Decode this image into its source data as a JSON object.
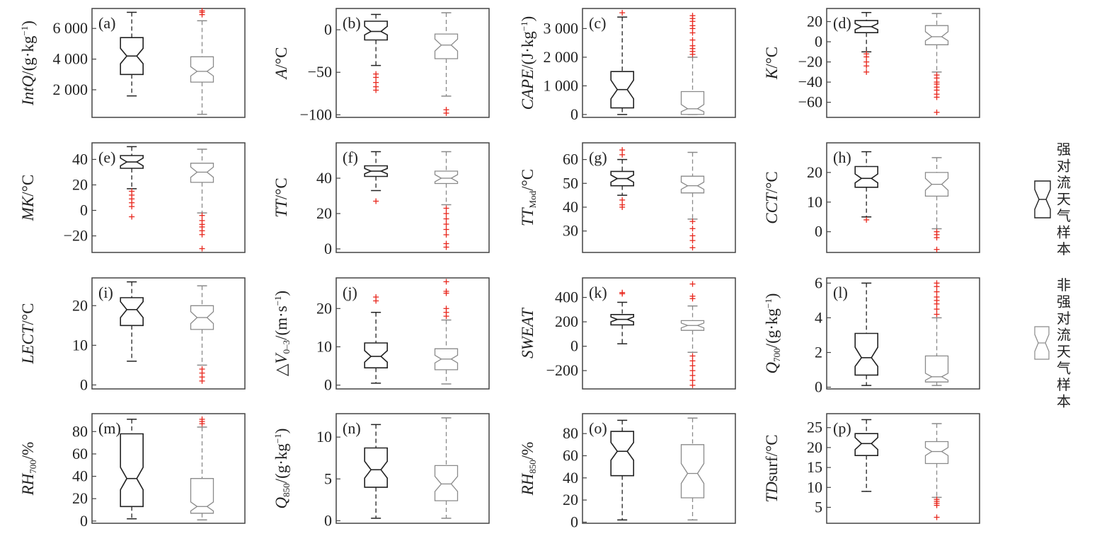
{
  "figure": {
    "legend": [
      {
        "label": "强对流天气样本",
        "color": "#222222"
      },
      {
        "label": "非强对流天气样本",
        "color": "#8a8a8a"
      }
    ],
    "outlier_color": "#e8281e"
  },
  "chart_data": [
    {
      "type": "box",
      "panel": "(a)",
      "ylabel": "IntQ/(g·kg⁻¹)",
      "ylim": [
        200,
        7300
      ],
      "yticks": [
        {
          "v": 2000,
          "t": "2 000"
        },
        {
          "v": 4000,
          "t": "4 000"
        },
        {
          "v": 6000,
          "t": "6 000"
        }
      ],
      "series": [
        {
          "q1": 3000,
          "med": 4200,
          "q3": 5400,
          "notch": [
            3700,
            4700
          ],
          "lo": 1600,
          "hi": 7050,
          "out": []
        },
        {
          "q1": 2500,
          "med": 3200,
          "q3": 4150,
          "notch": [
            2900,
            3500
          ],
          "lo": 400,
          "hi": 6500,
          "out": [
            6900,
            7050,
            7150
          ]
        }
      ]
    },
    {
      "type": "box",
      "panel": "(b)",
      "ylabel": "A/°C",
      "ylim": [
        -103,
        25
      ],
      "yticks": [
        {
          "v": 0,
          "t": "0"
        },
        {
          "v": -50,
          "t": "−50"
        },
        {
          "v": -100,
          "t": "−100"
        }
      ],
      "series": [
        {
          "q1": -12,
          "med": -2,
          "q3": 10,
          "notch": [
            -6,
            4
          ],
          "lo": -42,
          "hi": 18,
          "out": [
            -52,
            -56,
            -62,
            -67,
            -71
          ]
        },
        {
          "q1": -34,
          "med": -18,
          "q3": -5,
          "notch": [
            -25,
            -11
          ],
          "lo": -78,
          "hi": 20,
          "out": [
            -94,
            -98
          ]
        }
      ]
    },
    {
      "type": "box",
      "panel": "(c)",
      "ylabel": "CAPE/(J·kg⁻¹)",
      "ylim": [
        -100,
        3700
      ],
      "yticks": [
        {
          "v": 0,
          "t": "0"
        },
        {
          "v": 1000,
          "t": "1 000"
        },
        {
          "v": 2000,
          "t": "2 000"
        },
        {
          "v": 3000,
          "t": "3 000"
        }
      ],
      "series": [
        {
          "q1": 230,
          "med": 870,
          "q3": 1500,
          "notch": [
            550,
            1200
          ],
          "lo": 0,
          "hi": 3400,
          "out": [
            3550
          ]
        },
        {
          "q1": 0,
          "med": 200,
          "q3": 800,
          "notch": [
            100,
            350
          ],
          "lo": 0,
          "hi": 2000,
          "out": [
            2100,
            2200,
            2300,
            2400,
            2600,
            2850,
            3000,
            3100,
            3250,
            3350,
            3450
          ]
        }
      ]
    },
    {
      "type": "box",
      "panel": "(d)",
      "ylabel": "K/°C",
      "ylim": [
        -75,
        33
      ],
      "yticks": [
        {
          "v": 20,
          "t": "20"
        },
        {
          "v": 0,
          "t": "0"
        },
        {
          "v": -20,
          "t": "−20"
        },
        {
          "v": -40,
          "t": "−40"
        },
        {
          "v": -60,
          "t": "−60"
        }
      ],
      "series": [
        {
          "q1": 9,
          "med": 15,
          "q3": 21,
          "notch": [
            12,
            18
          ],
          "lo": -10,
          "hi": 29,
          "out": [
            -12,
            -15,
            -20,
            -24,
            -30
          ]
        },
        {
          "q1": -3,
          "med": 5,
          "q3": 16,
          "notch": [
            1,
            10
          ],
          "lo": -30,
          "hi": 28,
          "out": [
            -33,
            -36,
            -40,
            -42,
            -45,
            -48,
            -52,
            -55,
            -70
          ]
        }
      ]
    },
    {
      "type": "box",
      "panel": "(e)",
      "ylabel": "MK/°C",
      "ylim": [
        -33,
        53
      ],
      "yticks": [
        {
          "v": 40,
          "t": "40"
        },
        {
          "v": 20,
          "t": "20"
        },
        {
          "v": 0,
          "t": "0"
        },
        {
          "v": -20,
          "t": "−20"
        }
      ],
      "series": [
        {
          "q1": 33,
          "med": 38,
          "q3": 43,
          "notch": [
            35,
            41
          ],
          "lo": 17,
          "hi": 50,
          "out": [
            15,
            12,
            9,
            6,
            3,
            -5
          ]
        },
        {
          "q1": 22,
          "med": 30,
          "q3": 37,
          "notch": [
            26,
            34
          ],
          "lo": -2,
          "hi": 48,
          "out": [
            -4,
            -8,
            -11,
            -13,
            -16,
            -19,
            -30
          ]
        }
      ]
    },
    {
      "type": "box",
      "panel": "(f)",
      "ylabel": "TT/°C",
      "ylim": [
        -2,
        60
      ],
      "yticks": [
        {
          "v": 40,
          "t": "40"
        },
        {
          "v": 20,
          "t": "20"
        },
        {
          "v": 0,
          "t": "0"
        }
      ],
      "series": [
        {
          "q1": 41,
          "med": 44,
          "q3": 47,
          "notch": [
            42.5,
            45.5
          ],
          "lo": 33,
          "hi": 55,
          "out": [
            27
          ]
        },
        {
          "q1": 37,
          "med": 40,
          "q3": 44,
          "notch": [
            38,
            42
          ],
          "lo": 25,
          "hi": 55,
          "out": [
            23,
            20,
            17,
            14,
            11,
            8,
            3,
            1
          ]
        }
      ]
    },
    {
      "type": "box",
      "panel": "(g)",
      "ylabel": "TT_Mod/°C",
      "ylim": [
        21,
        67
      ],
      "yticks": [
        {
          "v": 60,
          "t": "60"
        },
        {
          "v": 50,
          "t": "50"
        },
        {
          "v": 40,
          "t": "40"
        },
        {
          "v": 30,
          "t": "30"
        }
      ],
      "series": [
        {
          "q1": 49,
          "med": 52,
          "q3": 55,
          "notch": [
            50.5,
            53.5
          ],
          "lo": 45,
          "hi": 60,
          "out": [
            64,
            62,
            43,
            41,
            40
          ]
        },
        {
          "q1": 46,
          "med": 49,
          "q3": 53,
          "notch": [
            47.5,
            50.5
          ],
          "lo": 35,
          "hi": 63,
          "out": [
            34,
            31,
            28,
            26,
            23
          ]
        }
      ]
    },
    {
      "type": "box",
      "panel": "(h)",
      "ylabel": "CCT/°C",
      "ylim": [
        -7,
        30
      ],
      "yticks": [
        {
          "v": 20,
          "t": "20"
        },
        {
          "v": 10,
          "t": "10"
        },
        {
          "v": 0,
          "t": "0"
        }
      ],
      "series": [
        {
          "q1": 15,
          "med": 18,
          "q3": 22,
          "notch": [
            16.5,
            19.5
          ],
          "lo": 5,
          "hi": 27,
          "out": [
            4
          ]
        },
        {
          "q1": 12,
          "med": 16,
          "q3": 20,
          "notch": [
            14,
            18
          ],
          "lo": 1,
          "hi": 25,
          "out": [
            0,
            -1,
            -2,
            -6
          ]
        }
      ]
    },
    {
      "type": "box",
      "panel": "(i)",
      "ylabel": "LECT/°C",
      "ylim": [
        -1,
        27
      ],
      "yticks": [
        {
          "v": 20,
          "t": "20"
        },
        {
          "v": 10,
          "t": "10"
        },
        {
          "v": 0,
          "t": "0"
        }
      ],
      "series": [
        {
          "q1": 15,
          "med": 19,
          "q3": 22,
          "notch": [
            17,
            21
          ],
          "lo": 6,
          "hi": 26,
          "out": []
        },
        {
          "q1": 14,
          "med": 17,
          "q3": 20,
          "notch": [
            15.5,
            18.5
          ],
          "lo": 5,
          "hi": 25,
          "out": [
            4,
            3,
            2,
            1
          ]
        }
      ]
    },
    {
      "type": "box",
      "panel": "(j)",
      "ylabel": "△V0–3/(m·s⁻¹)",
      "ylim": [
        -1,
        28
      ],
      "yticks": [
        {
          "v": 20,
          "t": "20"
        },
        {
          "v": 10,
          "t": "10"
        },
        {
          "v": 0,
          "t": "0"
        }
      ],
      "series": [
        {
          "q1": 4.5,
          "med": 7.5,
          "q3": 11,
          "notch": [
            6,
            9
          ],
          "lo": 0.5,
          "hi": 19,
          "out": [
            22,
            23
          ]
        },
        {
          "q1": 4,
          "med": 6.8,
          "q3": 9.5,
          "notch": [
            5.8,
            7.8
          ],
          "lo": 0.3,
          "hi": 17,
          "out": [
            18,
            19,
            20,
            24,
            24.5,
            27
          ]
        }
      ]
    },
    {
      "type": "box",
      "panel": "(k)",
      "ylabel": "SWEAT",
      "ylim": [
        -350,
        560
      ],
      "yticks": [
        {
          "v": 400,
          "t": "400"
        },
        {
          "v": 200,
          "t": "200"
        },
        {
          "v": 0,
          "t": "0"
        },
        {
          "v": -200,
          "t": "−200"
        }
      ],
      "series": [
        {
          "q1": 175,
          "med": 220,
          "q3": 260,
          "notch": [
            200,
            240
          ],
          "lo": 20,
          "hi": 360,
          "out": [
            430,
            440
          ]
        },
        {
          "q1": 130,
          "med": 170,
          "q3": 210,
          "notch": [
            150,
            190
          ],
          "lo": -50,
          "hi": 330,
          "out": [
            -80,
            -120,
            -160,
            -200,
            -240,
            -280,
            -320,
            390,
            410,
            510
          ]
        }
      ]
    },
    {
      "type": "box",
      "panel": "(l)",
      "ylabel": "Q700/(g·kg⁻¹)",
      "ylim": [
        -0.1,
        6.3
      ],
      "yticks": [
        {
          "v": 6,
          "t": "6"
        },
        {
          "v": 4,
          "t": "4"
        },
        {
          "v": 2,
          "t": "2"
        },
        {
          "v": 0,
          "t": "0"
        }
      ],
      "series": [
        {
          "q1": 0.7,
          "med": 1.7,
          "q3": 3.1,
          "notch": [
            1.2,
            2.3
          ],
          "lo": 0.1,
          "hi": 6,
          "out": []
        },
        {
          "q1": 0.3,
          "med": 0.6,
          "q3": 1.8,
          "notch": [
            0.4,
            0.8
          ],
          "lo": 0.1,
          "hi": 4,
          "out": [
            4.2,
            4.5,
            4.8,
            5.0,
            5.2,
            5.5,
            5.8,
            6.0
          ]
        }
      ]
    },
    {
      "type": "box",
      "panel": "(m)",
      "ylabel": "RH700/%",
      "ylim": [
        -2,
        96
      ],
      "yticks": [
        {
          "v": 80,
          "t": "80"
        },
        {
          "v": 60,
          "t": "60"
        },
        {
          "v": 40,
          "t": "40"
        },
        {
          "v": 20,
          "t": "20"
        },
        {
          "v": 0,
          "t": "0"
        }
      ],
      "series": [
        {
          "q1": 13,
          "med": 38,
          "q3": 78,
          "notch": [
            28,
            48
          ],
          "lo": 2,
          "hi": 91,
          "out": []
        },
        {
          "q1": 7,
          "med": 13,
          "q3": 38,
          "notch": [
            9,
            17
          ],
          "lo": 1,
          "hi": 84,
          "out": [
            87,
            89,
            91
          ]
        }
      ]
    },
    {
      "type": "box",
      "panel": "(n)",
      "ylabel": "Q850/(g·kg⁻¹)",
      "ylim": [
        -0.3,
        12.8
      ],
      "yticks": [
        {
          "v": 10,
          "t": "10"
        },
        {
          "v": 5,
          "t": "5"
        },
        {
          "v": 0,
          "t": "0"
        }
      ],
      "series": [
        {
          "q1": 4,
          "med": 6.1,
          "q3": 8.7,
          "notch": [
            5.1,
            7.1
          ],
          "lo": 0.3,
          "hi": 11.5,
          "out": []
        },
        {
          "q1": 2.4,
          "med": 4.4,
          "q3": 6.6,
          "notch": [
            3.5,
            5.3
          ],
          "lo": 0.3,
          "hi": 12.3,
          "out": []
        }
      ]
    },
    {
      "type": "box",
      "panel": "(o)",
      "ylabel": "RH850/%",
      "ylim": [
        -1,
        98
      ],
      "yticks": [
        {
          "v": 80,
          "t": "80"
        },
        {
          "v": 60,
          "t": "60"
        },
        {
          "v": 40,
          "t": "40"
        },
        {
          "v": 20,
          "t": "20"
        },
        {
          "v": 0,
          "t": "0"
        }
      ],
      "series": [
        {
          "q1": 42,
          "med": 64,
          "q3": 82,
          "notch": [
            56,
            72
          ],
          "lo": 2,
          "hi": 92,
          "out": []
        },
        {
          "q1": 22,
          "med": 44,
          "q3": 70,
          "notch": [
            35,
            53
          ],
          "lo": 2,
          "hi": 94,
          "out": []
        }
      ]
    },
    {
      "type": "box",
      "panel": "(p)",
      "ylabel": "TDsurf/°C",
      "ylim": [
        1,
        28.5
      ],
      "yticks": [
        {
          "v": 25,
          "t": "25"
        },
        {
          "v": 20,
          "t": "20"
        },
        {
          "v": 15,
          "t": "15"
        },
        {
          "v": 10,
          "t": "10"
        },
        {
          "v": 5,
          "t": "5"
        }
      ],
      "series": [
        {
          "q1": 18,
          "med": 21,
          "q3": 23.5,
          "notch": [
            19.5,
            22.5
          ],
          "lo": 9,
          "hi": 27,
          "out": []
        },
        {
          "q1": 16,
          "med": 19,
          "q3": 21.5,
          "notch": [
            18,
            20
          ],
          "lo": 7.5,
          "hi": 26,
          "out": [
            7,
            6.5,
            6,
            5.5,
            2.5
          ]
        }
      ]
    }
  ]
}
